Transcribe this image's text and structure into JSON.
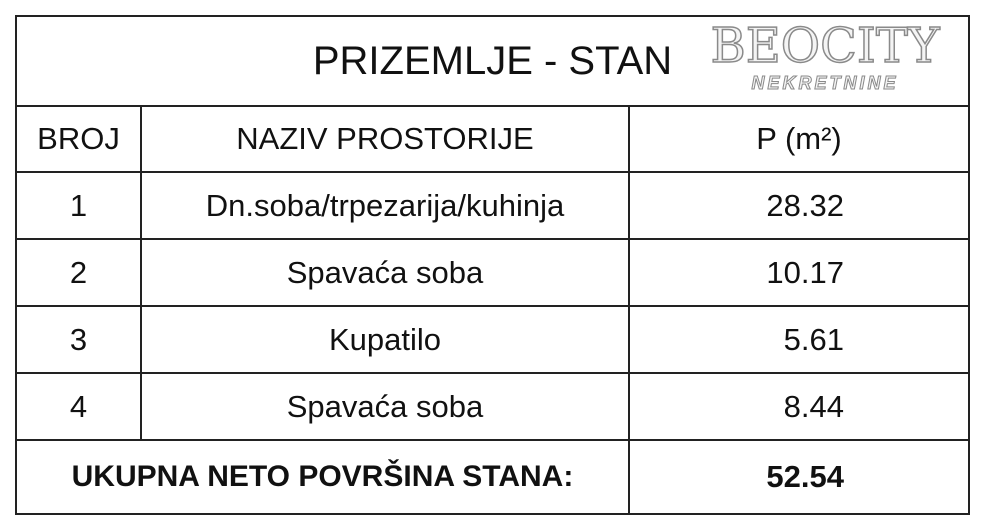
{
  "title": "PRIZEMLJE - STAN",
  "headers": [
    "BROJ",
    "NAZIV PROSTORIJE",
    "P (m²)"
  ],
  "rows": [
    {
      "num": "1",
      "name": "Dn.soba/trpezarija/kuhinja",
      "area": "28.32"
    },
    {
      "num": "2",
      "name": "Spavaća soba",
      "area": "10.17"
    },
    {
      "num": "3",
      "name": "Kupatilo",
      "area": "5.61"
    },
    {
      "num": "4",
      "name": "Spavaća soba",
      "area": "8.44"
    }
  ],
  "total": {
    "label": "UKUPNA NETO POVRŠINA STANA:",
    "area": "52.54"
  },
  "watermark": {
    "brand": "BEOCITY",
    "sub": "NEKRETNINE"
  }
}
